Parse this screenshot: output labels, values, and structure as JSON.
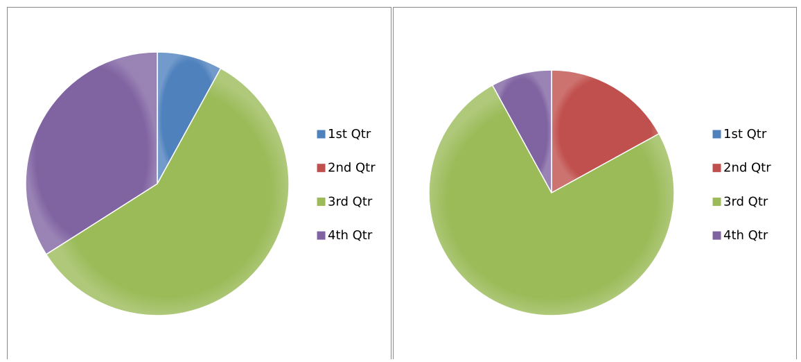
{
  "chart_data": [
    {
      "type": "pie",
      "categories": [
        "1st Qtr",
        "2nd Qtr",
        "3rd Qtr",
        "4th Qtr"
      ],
      "values": [
        8,
        0,
        58,
        34
      ],
      "colors": [
        "#4f81bd",
        "#c0504d",
        "#9bbb59",
        "#8064a2"
      ],
      "legend": "right"
    },
    {
      "type": "pie",
      "categories": [
        "1st Qtr",
        "2nd Qtr",
        "3rd Qtr",
        "4th Qtr"
      ],
      "values": [
        0,
        17,
        75,
        8
      ],
      "colors": [
        "#4f81bd",
        "#c0504d",
        "#9bbb59",
        "#8064a2"
      ],
      "legend": "right"
    }
  ]
}
